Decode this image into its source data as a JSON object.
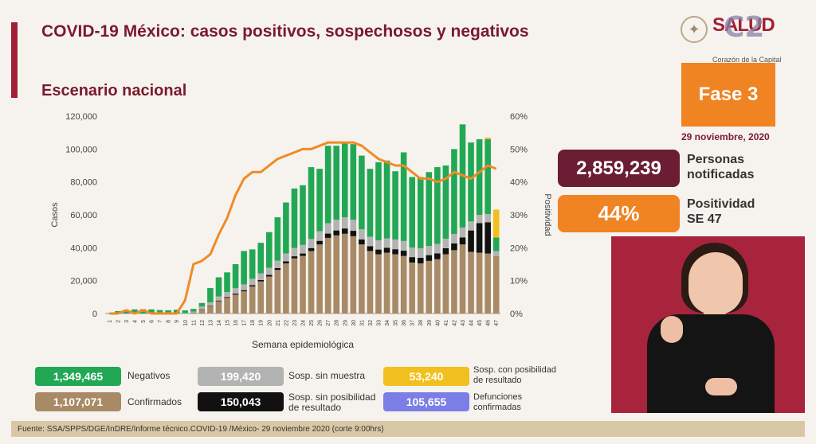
{
  "header": {
    "title": "COVID-19 México: casos positivos, sospechosos y negativos",
    "subtitle": "Escenario nacional"
  },
  "logo": {
    "seal_icon": "mexico-seal-icon",
    "brand": "SALUD",
    "channel": "C2",
    "caption": "Corazón de la Capital"
  },
  "phase": {
    "label": "Fase 3",
    "date": "29 noviembre, 2020"
  },
  "stats": {
    "persons_value": "2,859,239",
    "persons_label_1": "Personas",
    "persons_label_2": "notificadas",
    "positivity_value": "44%",
    "positivity_label_1": "Positividad",
    "positivity_label_2": "SE 47"
  },
  "legend": {
    "negativos_value": "1,349,465",
    "negativos_label": "Negativos",
    "confirmados_value": "1,107,071",
    "confirmados_label": "Confirmados",
    "sin_muestra_value": "199,420",
    "sin_muestra_label": "Sosp. sin muestra",
    "sin_posibilidad_value": "150,043",
    "sin_posibilidad_label_1": "Sosp. sin posibilidad",
    "sin_posibilidad_label_2": "de resultado",
    "con_posibilidad_value": "53,240",
    "con_posibilidad_label_1": "Sosp. con posibilidad",
    "con_posibilidad_label_2": "de resultado",
    "defunciones_value": "105,655",
    "defunciones_label_1": "Defunciones",
    "defunciones_label_2": "confirmadas"
  },
  "colors": {
    "confirmados": "#a88a66",
    "sin_posibilidad": "#111111",
    "sin_muestra": "#b3b3b3",
    "negativos": "#22a855",
    "con_posibilidad": "#f2c01e",
    "positividad": "#f08a24",
    "defunciones": "#7b7ee6"
  },
  "footer": "Fuente: SSA/SPPS/DGE/InDRE/Informe técnico.COVID-19 /México- 29 noviembre 2020 (corte 9:00hrs)",
  "chart_data": {
    "type": "bar",
    "stacked": true,
    "xlabel": "Semana epidemiológica",
    "ylabel": "Casos",
    "y2label": "Positividad",
    "ylim": [
      0,
      120000
    ],
    "y2lim": [
      0,
      60
    ],
    "y_ticks": [
      "0",
      "20,000",
      "40,000",
      "60,000",
      "80,000",
      "100,000",
      "120,000"
    ],
    "y2_ticks": [
      "0%",
      "10%",
      "20%",
      "30%",
      "40%",
      "50%",
      "60%"
    ],
    "categories": [
      "1",
      "2",
      "3",
      "4",
      "5",
      "6",
      "7",
      "8",
      "9",
      "10",
      "11",
      "12",
      "13",
      "14",
      "15",
      "16",
      "17",
      "18",
      "19",
      "20",
      "21",
      "22",
      "23",
      "24",
      "25",
      "26",
      "27",
      "28",
      "29",
      "30",
      "31",
      "32",
      "33",
      "34",
      "35",
      "36",
      "37",
      "38",
      "39",
      "40",
      "41",
      "42",
      "43",
      "44",
      "45",
      "46",
      "47"
    ],
    "series": [
      {
        "name": "Confirmados",
        "values": [
          0,
          0,
          0,
          0,
          0,
          0,
          0,
          0,
          0,
          100,
          500,
          2500,
          4500,
          7500,
          9500,
          11500,
          13500,
          16500,
          19500,
          22500,
          26500,
          30500,
          33500,
          35000,
          38000,
          42000,
          46000,
          47500,
          48500,
          47000,
          42000,
          38000,
          36000,
          37000,
          36000,
          35000,
          31000,
          30500,
          32000,
          33000,
          36000,
          38500,
          42000,
          37500,
          37000,
          36500,
          35000
        ]
      },
      {
        "name": "Sosp. sin posibilidad de resultado",
        "values": [
          0,
          0,
          0,
          0,
          0,
          0,
          0,
          0,
          0,
          0,
          100,
          200,
          300,
          400,
          500,
          600,
          700,
          800,
          900,
          1000,
          1100,
          1200,
          1300,
          1500,
          1800,
          2200,
          2600,
          3000,
          3200,
          3300,
          3000,
          2900,
          2900,
          3000,
          3100,
          3200,
          3300,
          3400,
          3500,
          3600,
          3700,
          4100,
          4300,
          13000,
          18000,
          19000,
          0
        ]
      },
      {
        "name": "Sosp. sin muestra",
        "values": [
          0,
          0,
          0,
          0,
          0,
          0,
          0,
          0,
          0,
          200,
          600,
          1500,
          2000,
          2500,
          3000,
          3300,
          3500,
          3800,
          4000,
          4300,
          4500,
          4800,
          5000,
          5200,
          5500,
          5800,
          6300,
          6500,
          6800,
          6700,
          6200,
          5800,
          5600,
          5700,
          5900,
          5900,
          5800,
          5700,
          5600,
          5700,
          5800,
          5800,
          6000,
          5500,
          5000,
          5000,
          3000
        ]
      },
      {
        "name": "Negativos",
        "values": [
          200,
          1500,
          2000,
          2500,
          2600,
          2500,
          2100,
          2000,
          2300,
          1600,
          1600,
          2200,
          8700,
          11600,
          12000,
          14600,
          20300,
          17900,
          18600,
          21700,
          26400,
          31000,
          36200,
          36300,
          43700,
          38000,
          47100,
          45000,
          45500,
          46000,
          44800,
          41300,
          47500,
          47300,
          41500,
          53900,
          42900,
          43400,
          44900,
          46700,
          44500,
          51600,
          62700,
          48000,
          46000,
          45500,
          8200
        ]
      },
      {
        "name": "Sosp. con posibilidad de resultado",
        "values": [
          0,
          0,
          0,
          0,
          0,
          0,
          0,
          0,
          0,
          0,
          0,
          0,
          0,
          0,
          0,
          0,
          0,
          0,
          0,
          0,
          0,
          0,
          0,
          0,
          0,
          0,
          0,
          0,
          0,
          0,
          0,
          0,
          0,
          0,
          0,
          0,
          0,
          0,
          0,
          0,
          0,
          0,
          0,
          0,
          0,
          1000,
          17000
        ]
      }
    ],
    "positividad": [
      0,
      0,
      1,
      0,
      1,
      0,
      0,
      0,
      0,
      4,
      15,
      16,
      18,
      24,
      29,
      36,
      41,
      43,
      43,
      45,
      47,
      48,
      49,
      50,
      50,
      51,
      52,
      52,
      52,
      52,
      51,
      49,
      47,
      46,
      45,
      45,
      43,
      41,
      41,
      40,
      41,
      43,
      42,
      41,
      43,
      45,
      44
    ]
  }
}
